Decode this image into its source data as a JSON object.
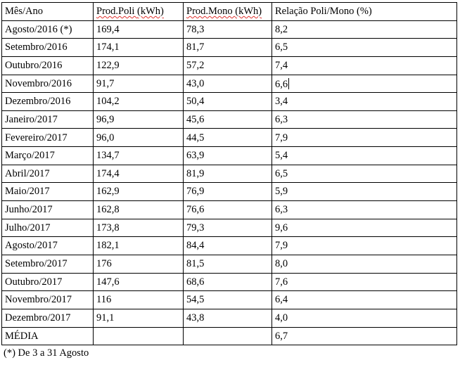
{
  "table": {
    "headers": {
      "month": "Mês/Ano",
      "poli_prefix": "Prod.Poli ",
      "poli_unit": "(kWh)",
      "mono_prefix": "Prod.Mono ",
      "mono_unit": "(kWh)",
      "ratio": "Relação Poli/Mono (%)"
    },
    "rows": [
      {
        "month": "Agosto/2016 (*)",
        "poli": "169,4",
        "mono": "78,3",
        "ratio": "8,2"
      },
      {
        "month": "Setembro/2016",
        "poli": "174,1",
        "mono": "81,7",
        "ratio": "6,5"
      },
      {
        "month": "Outubro/2016",
        "poli": "122,9",
        "mono": "57,2",
        "ratio": "7,4"
      },
      {
        "month": "Novembro/2016",
        "poli": "91,7",
        "mono": "43,0",
        "ratio": "6,6"
      },
      {
        "month": "Dezembro/2016",
        "poli": "104,2",
        "mono": "50,4",
        "ratio": "3,4"
      },
      {
        "month": "Janeiro/2017",
        "poli": "96,9",
        "mono": "45,6",
        "ratio": "6,3"
      },
      {
        "month": "Fevereiro/2017",
        "poli": "96,0",
        "mono": "44,5",
        "ratio": "7,9"
      },
      {
        "month": "Março/2017",
        "poli": "134,7",
        "mono": "63,9",
        "ratio": "5,4"
      },
      {
        "month": "Abril/2017",
        "poli": "174,4",
        "mono": "81,9",
        "ratio": "6,5"
      },
      {
        "month": "Maio/2017",
        "poli": "162,9",
        "mono": "76,9",
        "ratio": "5,9"
      },
      {
        "month": "Junho/2017",
        "poli": "162,8",
        "mono": "76,6",
        "ratio": "6,3"
      },
      {
        "month": "Julho/2017",
        "poli": "173,8",
        "mono": "79,3",
        "ratio": "9,6"
      },
      {
        "month": "Agosto/2017",
        "poli": "182,1",
        "mono": "84,4",
        "ratio": "7,9"
      },
      {
        "month": "Setembro/2017",
        "poli": "176",
        "mono": "81,5",
        "ratio": "8,0"
      },
      {
        "month": "Outubro/2017",
        "poli": "147,6",
        "mono": "68,6",
        "ratio": "7,6"
      },
      {
        "month": "Novembro/2017",
        "poli": "116",
        "mono": "54,5",
        "ratio": "6,4"
      },
      {
        "month": "Dezembro/2017",
        "poli": "91,1",
        "mono": "43,8",
        "ratio": "4,0"
      }
    ],
    "summary": {
      "label": "MÉDIA",
      "poli": "",
      "mono": "",
      "ratio": "6,7"
    }
  },
  "footnote": "(*) De 3 a 31 Agosto",
  "colors": {
    "text": "#000000",
    "border": "#000000",
    "spellcheck_underline": "#e0302c",
    "background": "#ffffff"
  }
}
